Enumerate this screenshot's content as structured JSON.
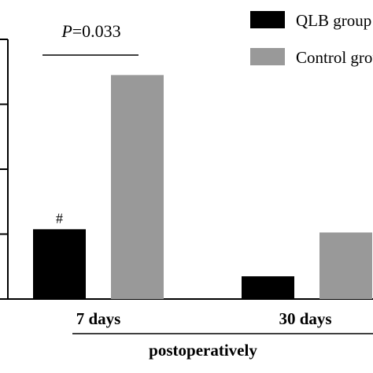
{
  "chart_data": {
    "type": "bar",
    "categories": [
      "7 days",
      "30 days"
    ],
    "group_label": "postoperatively",
    "series": [
      {
        "name": "QLB group",
        "values": [
          2.15,
          0.7
        ],
        "color": "#000000"
      },
      {
        "name": "Control group",
        "values": [
          6.9,
          2.05
        ],
        "color": "#999999"
      }
    ],
    "ylim": [
      0,
      8
    ],
    "annotations": {
      "significance_text": "P=0.033",
      "significance_p": "P",
      "significance_value": "=0.033",
      "marker": "#"
    },
    "legend_position": "top-right",
    "grid": false
  }
}
